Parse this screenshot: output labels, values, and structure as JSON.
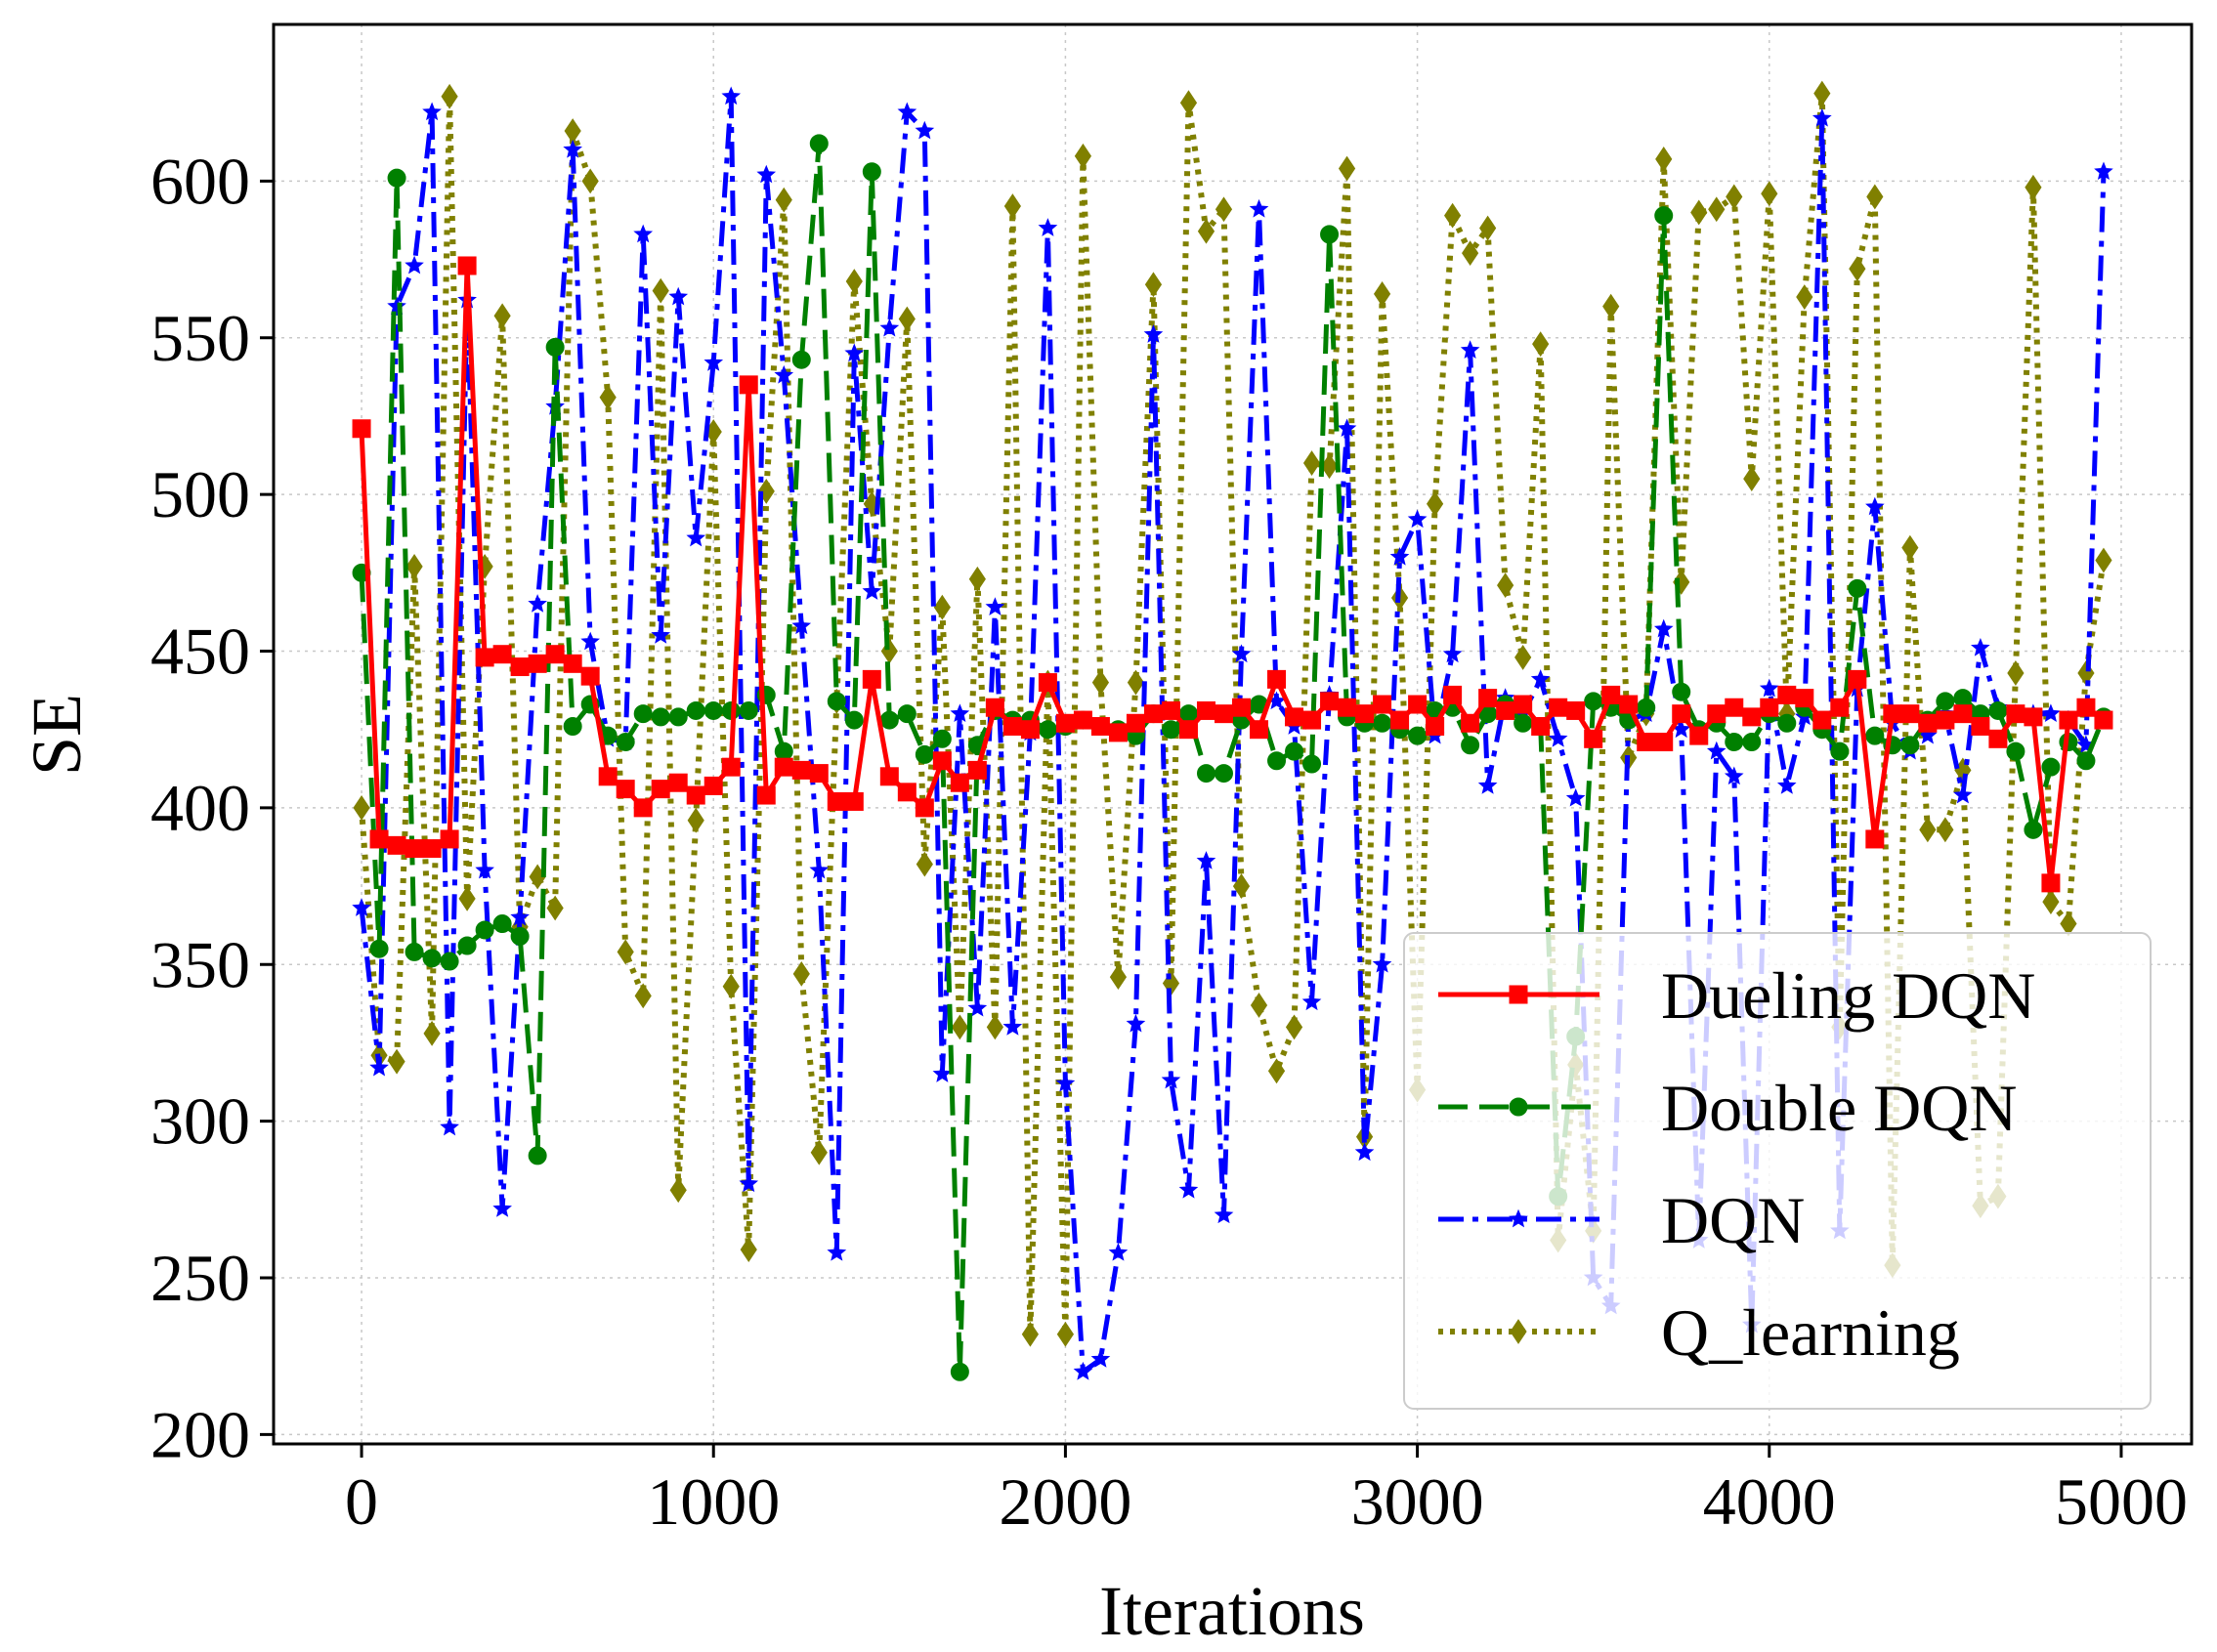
{
  "chart_data": {
    "type": "line",
    "title": "",
    "xlabel": "Iterations",
    "ylabel": "SE",
    "xlim": [
      -250,
      5200
    ],
    "ylim": [
      197,
      650
    ],
    "xticks": [
      0,
      1000,
      2000,
      3000,
      4000,
      5000
    ],
    "xtick_labels": [
      "0",
      "1000",
      "2000",
      "3000",
      "4000",
      "5000"
    ],
    "yticks": [
      200,
      250,
      300,
      350,
      400,
      450,
      500,
      550,
      600
    ],
    "ytick_labels": [
      "200",
      "250",
      "300",
      "350",
      "400",
      "450",
      "500",
      "550",
      "600"
    ],
    "grid": true,
    "legend_position": "lower-right",
    "x": [
      0,
      50,
      100,
      150,
      200,
      250,
      300,
      350,
      400,
      450,
      500,
      550,
      600,
      650,
      700,
      750,
      800,
      850,
      900,
      950,
      1000,
      1050,
      1100,
      1150,
      1200,
      1250,
      1300,
      1350,
      1400,
      1450,
      1500,
      1550,
      1600,
      1650,
      1700,
      1750,
      1800,
      1850,
      1900,
      1950,
      2000,
      2050,
      2100,
      2150,
      2200,
      2250,
      2300,
      2350,
      2400,
      2450,
      2500,
      2550,
      2600,
      2650,
      2700,
      2750,
      2800,
      2850,
      2900,
      2950,
      3000,
      3050,
      3100,
      3150,
      3200,
      3250,
      3300,
      3350,
      3400,
      3450,
      3500,
      3550,
      3600,
      3650,
      3700,
      3750,
      3800,
      3850,
      3900,
      3950,
      4000,
      4050,
      4100,
      4150,
      4200,
      4250,
      4300,
      4350,
      4400,
      4450,
      4500,
      4550,
      4600,
      4650,
      4700,
      4750,
      4800,
      4850,
      4900,
      4950
    ],
    "series": [
      {
        "name": "Dueling DQN",
        "color": "#ff0000",
        "dash": "solid",
        "marker": "square",
        "values": [
          521,
          390,
          388,
          387,
          387,
          390,
          573,
          448,
          449,
          445,
          446,
          449,
          446,
          442,
          410,
          406,
          400,
          406,
          408,
          404,
          407,
          413,
          535,
          404,
          413,
          412,
          411,
          402,
          402,
          441,
          410,
          405,
          400,
          415,
          408,
          412,
          432,
          426,
          425,
          440,
          427,
          428,
          426,
          424,
          427,
          430,
          431,
          425,
          431,
          430,
          432,
          425,
          441,
          429,
          428,
          434,
          432,
          430,
          433,
          428,
          433,
          426,
          436,
          427,
          435,
          431,
          433,
          426,
          432,
          431,
          422,
          436,
          433,
          421,
          421,
          430,
          423,
          430,
          432,
          429,
          432,
          436,
          435,
          428,
          432,
          441,
          390,
          430,
          430,
          427,
          428,
          430,
          426,
          422,
          430,
          429,
          376,
          428,
          432,
          428
        ]
      },
      {
        "name": "Double DQN",
        "color": "#008000",
        "dash": "dashed",
        "marker": "circle",
        "values": [
          475,
          355,
          601,
          354,
          352,
          351,
          356,
          361,
          363,
          359,
          289,
          547,
          426,
          433,
          423,
          421,
          430,
          429,
          429,
          431,
          431,
          431,
          431,
          436,
          418,
          543,
          612,
          434,
          428,
          603,
          428,
          430,
          417,
          422,
          220,
          420,
          431,
          428,
          428,
          425,
          426,
          428,
          426,
          425,
          423,
          430,
          425,
          430,
          411,
          411,
          428,
          433,
          415,
          418,
          414,
          583,
          429,
          427,
          427,
          425,
          423,
          431,
          432,
          420,
          430,
          433,
          427,
          426,
          276,
          327,
          434,
          432,
          428,
          432,
          589,
          437,
          425,
          427,
          421,
          421,
          430,
          427,
          432,
          425,
          418,
          470,
          423,
          420,
          420,
          428,
          434,
          435,
          430,
          431,
          418,
          393,
          413,
          421,
          415,
          429
        ]
      },
      {
        "name": "DQN",
        "color": "#0000ff",
        "dash": "dashdot",
        "marker": "star",
        "values": [
          368,
          317,
          560,
          573,
          622,
          298,
          562,
          380,
          272,
          365,
          465,
          528,
          610,
          453,
          422,
          421,
          583,
          455,
          563,
          486,
          542,
          627,
          280,
          602,
          538,
          458,
          380,
          258,
          545,
          469,
          553,
          622,
          616,
          315,
          430,
          336,
          464,
          330,
          424,
          585,
          312,
          220,
          224,
          258,
          331,
          551,
          313,
          278,
          383,
          270,
          449,
          591,
          434,
          426,
          338,
          436,
          521,
          290,
          350,
          480,
          492,
          423,
          449,
          546,
          407,
          435,
          430,
          441,
          422,
          403,
          250,
          241,
          428,
          430,
          457,
          425,
          262,
          418,
          410,
          235,
          438,
          407,
          429,
          620,
          265,
          438,
          496,
          427,
          418,
          423,
          430,
          404,
          451,
          432,
          430,
          430,
          430,
          428,
          420,
          603
        ]
      },
      {
        "name": "Q_learning",
        "color": "#808000",
        "dash": "dotted",
        "marker": "diamond",
        "values": [
          400,
          321,
          319,
          477,
          328,
          627,
          371,
          477,
          557,
          362,
          378,
          368,
          616,
          600,
          531,
          354,
          340,
          565,
          278,
          396,
          520,
          343,
          259,
          501,
          594,
          347,
          290,
          434,
          568,
          497,
          450,
          556,
          382,
          464,
          330,
          473,
          330,
          592,
          232,
          440,
          232,
          608,
          440,
          346,
          440,
          567,
          344,
          625,
          584,
          591,
          375,
          337,
          316,
          330,
          510,
          509,
          604,
          295,
          564,
          467,
          310,
          497,
          589,
          577,
          585,
          471,
          448,
          548,
          262,
          318,
          265,
          560,
          416,
          430,
          607,
          472,
          590,
          591,
          595,
          505,
          596,
          430,
          563,
          628,
          330,
          572,
          595,
          254,
          483,
          393,
          393,
          412,
          273,
          276,
          443,
          598,
          370,
          363,
          443,
          479
        ]
      }
    ]
  }
}
